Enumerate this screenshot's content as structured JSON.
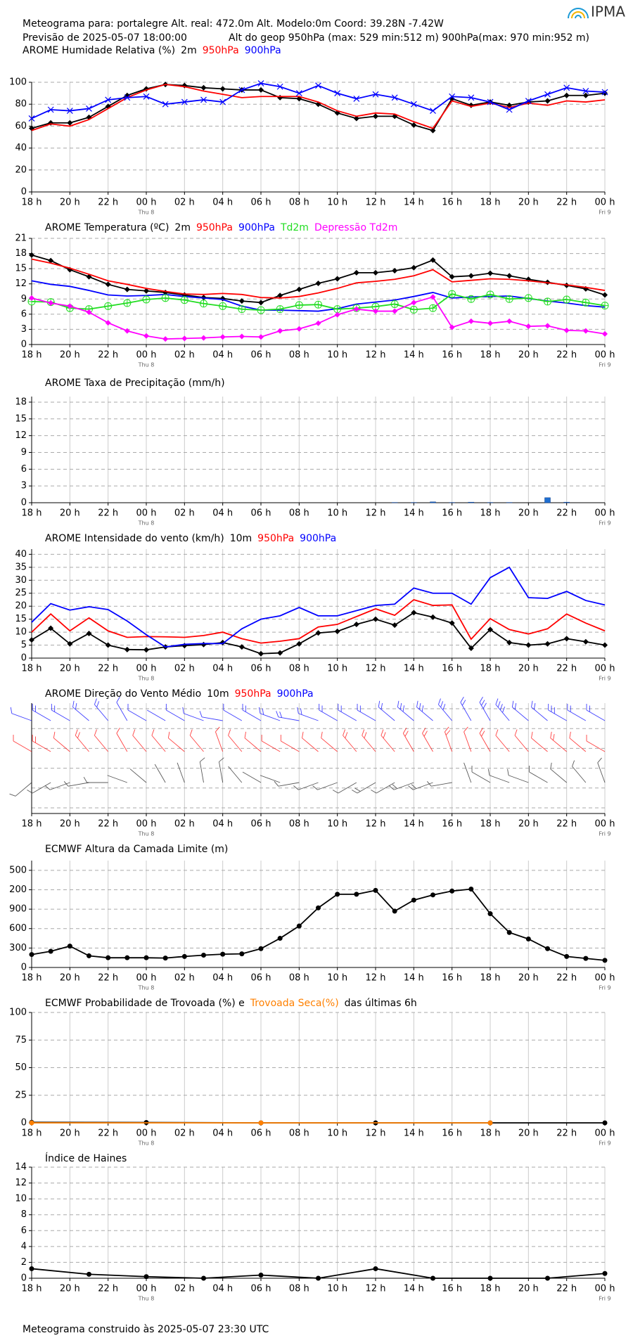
{
  "header": {
    "line1": "Meteograma  para: portalegre    Alt. real: 472.0m    Alt. Modelo:0m   Coord: 39.28N -7.42W",
    "line2a": "Previsão de 2025-05-07 18:00:00",
    "line2b": "Alt do geop 950hPa (max: 529 min:512 m) 900hPa(max: 970 min:952 m)",
    "logo": "IPMA",
    "footer": "Meteograma construido às 2025-05-07 23:30 UTC"
  },
  "x_axis": {
    "xlim": [
      0,
      30
    ],
    "xticks": [
      {
        "value": 0,
        "label": "18 h"
      },
      {
        "value": 2,
        "label": "20 h"
      },
      {
        "value": 4,
        "label": "22 h"
      },
      {
        "value": 6,
        "label": "00 h"
      },
      {
        "value": 8,
        "label": "02 h"
      },
      {
        "value": 10,
        "label": "04 h"
      },
      {
        "value": 12,
        "label": "06 h"
      },
      {
        "value": 14,
        "label": "08 h"
      },
      {
        "value": 16,
        "label": "10 h"
      },
      {
        "value": 18,
        "label": "12 h"
      },
      {
        "value": 20,
        "label": "14 h"
      },
      {
        "value": 22,
        "label": "16 h"
      },
      {
        "value": 24,
        "label": "18 h"
      },
      {
        "value": 26,
        "label": "20 h"
      },
      {
        "value": 28,
        "label": "22 h"
      },
      {
        "value": 30,
        "label": "00 h"
      }
    ],
    "day_labels": [
      {
        "value": 6,
        "label": "Thu 8"
      },
      {
        "value": 30,
        "label": "Fri 9"
      }
    ]
  },
  "chart_data": [
    {
      "type": "line",
      "title": "AROME Humidade Relativa (%)",
      "grid": true,
      "x": [
        0,
        1,
        2,
        3,
        4,
        5,
        6,
        7,
        8,
        9,
        10,
        11,
        12,
        13,
        14,
        15,
        16,
        17,
        18,
        19,
        20,
        21,
        22,
        23,
        24,
        25,
        26,
        27,
        28,
        29,
        30
      ],
      "ylim": [
        0,
        100
      ],
      "yticks": [
        0,
        20,
        40,
        60,
        80,
        100
      ],
      "series": [
        {
          "name": "2m",
          "color": "#000000",
          "marker": "diamond",
          "values": [
            58,
            63,
            63,
            68,
            78,
            88,
            94,
            98,
            97,
            95,
            94,
            93,
            93,
            86,
            85,
            80,
            72,
            67,
            69,
            69,
            61,
            56,
            85,
            79,
            82,
            79,
            82,
            83,
            88,
            88,
            90
          ]
        },
        {
          "name": "950hPa",
          "color": "#ff0000",
          "marker": "none",
          "values": [
            56,
            62,
            60,
            66,
            76,
            86,
            93,
            98,
            96,
            92,
            89,
            86,
            87,
            87,
            87,
            82,
            74,
            69,
            72,
            71,
            64,
            58,
            83,
            78,
            81,
            77,
            81,
            79,
            83,
            82,
            84
          ]
        },
        {
          "name": "900hPa",
          "color": "#0000ff",
          "marker": "x",
          "values": [
            67,
            75,
            74,
            76,
            84,
            86,
            87,
            80,
            82,
            84,
            82,
            93,
            99,
            96,
            90,
            97,
            90,
            85,
            89,
            86,
            80,
            74,
            87,
            86,
            82,
            75,
            83,
            89,
            95,
            92,
            91
          ]
        }
      ]
    },
    {
      "type": "line",
      "title": "AROME Temperatura (ºC)",
      "grid": true,
      "x": [
        0,
        1,
        2,
        3,
        4,
        5,
        6,
        7,
        8,
        9,
        10,
        11,
        12,
        13,
        14,
        15,
        16,
        17,
        18,
        19,
        20,
        21,
        22,
        23,
        24,
        25,
        26,
        27,
        28,
        29,
        30
      ],
      "ylim": [
        0,
        21
      ],
      "yticks": [
        0,
        3,
        6,
        9,
        12,
        15,
        18,
        21
      ],
      "series": [
        {
          "name": "2m",
          "color": "#000000",
          "marker": "diamond",
          "values": [
            17.7,
            16.6,
            14.8,
            13.4,
            11.9,
            10.9,
            10.6,
            10.3,
            9.8,
            9.3,
            9.1,
            8.6,
            8.3,
            9.7,
            10.9,
            12.1,
            13.0,
            14.2,
            14.2,
            14.6,
            15.2,
            16.7,
            13.4,
            13.6,
            14.1,
            13.6,
            12.9,
            12.3,
            11.7,
            11.0,
            9.8
          ]
        },
        {
          "name": "950hPa",
          "color": "#ff0000",
          "marker": "none",
          "values": [
            16.9,
            16.1,
            15.1,
            13.9,
            12.6,
            11.9,
            11.1,
            10.5,
            10.0,
            9.9,
            10.1,
            9.9,
            9.3,
            9.2,
            9.5,
            10.2,
            11.1,
            12.2,
            12.5,
            12.9,
            13.6,
            14.8,
            12.4,
            12.7,
            13.0,
            12.9,
            12.6,
            12.2,
            11.8,
            11.3,
            10.7
          ]
        },
        {
          "name": "900hPa",
          "color": "#0000ff",
          "marker": "none",
          "values": [
            12.6,
            11.9,
            11.5,
            10.7,
            9.8,
            9.6,
            9.7,
            9.9,
            9.5,
            9.2,
            8.9,
            7.6,
            6.8,
            6.8,
            6.7,
            6.6,
            7.1,
            8.0,
            8.4,
            8.8,
            9.5,
            10.3,
            9.2,
            9.4,
            9.5,
            9.6,
            9.1,
            8.6,
            8.2,
            7.7,
            7.4
          ]
        },
        {
          "name": "Td2m",
          "color": "#22dd22",
          "marker": "circle-plus",
          "values": [
            8.5,
            8.4,
            7.2,
            7.0,
            7.6,
            8.2,
            8.9,
            9.2,
            8.8,
            8.1,
            7.6,
            7.0,
            6.8,
            7.0,
            7.8,
            7.9,
            7.0,
            7.2,
            7.5,
            8.0,
            6.9,
            7.2,
            10.0,
            9.0,
            9.9,
            9.0,
            9.2,
            8.5,
            8.9,
            8.3,
            7.7
          ]
        },
        {
          "name": "Depressão Td2m",
          "color": "#ff00ff",
          "marker": "diamond",
          "values": [
            9.2,
            8.2,
            7.6,
            6.4,
            4.3,
            2.7,
            1.7,
            1.1,
            1.2,
            1.3,
            1.5,
            1.6,
            1.5,
            2.7,
            3.1,
            4.2,
            5.9,
            7.0,
            6.6,
            6.6,
            8.3,
            9.4,
            3.4,
            4.6,
            4.2,
            4.6,
            3.6,
            3.7,
            2.8,
            2.7,
            2.1
          ]
        }
      ]
    },
    {
      "type": "bar",
      "title": "AROME Taxa de Precipitação (mm/h)",
      "grid": true,
      "color": "#1f6fd1",
      "x": [
        0,
        1,
        2,
        3,
        4,
        5,
        6,
        7,
        8,
        9,
        10,
        11,
        12,
        13,
        14,
        15,
        16,
        17,
        18,
        19,
        20,
        21,
        22,
        23,
        24,
        25,
        26,
        27,
        28,
        29,
        30
      ],
      "ylim": [
        0,
        19
      ],
      "yticks": [
        0,
        3,
        6,
        9,
        12,
        15,
        18
      ],
      "values": [
        0,
        0,
        0,
        0,
        0,
        0,
        0,
        0,
        0,
        0,
        0,
        0,
        0,
        0,
        0,
        0,
        0,
        0,
        0,
        0.05,
        0.05,
        0.15,
        0.05,
        0.1,
        0.05,
        0.05,
        0,
        0.9,
        0.1,
        0,
        0
      ]
    },
    {
      "type": "line",
      "title": "AROME Intensidade do vento (km/h)",
      "grid": true,
      "x": [
        0,
        1,
        2,
        3,
        4,
        5,
        6,
        7,
        8,
        9,
        10,
        11,
        12,
        13,
        14,
        15,
        16,
        17,
        18,
        19,
        20,
        21,
        22,
        23,
        24,
        25,
        26,
        27,
        28,
        29,
        30
      ],
      "ylim": [
        0,
        42
      ],
      "yticks": [
        0,
        5,
        10,
        15,
        20,
        25,
        30,
        35,
        40
      ],
      "series": [
        {
          "name": "10m",
          "color": "#000000",
          "marker": "diamond",
          "values": [
            7,
            11.5,
            5.5,
            9.5,
            5,
            3.3,
            3.2,
            4.3,
            4.8,
            5.2,
            6,
            4.3,
            1.7,
            2,
            5.5,
            9.7,
            10.3,
            13,
            15,
            12.7,
            17.5,
            15.8,
            13.5,
            3.8,
            11,
            6,
            5,
            5.5,
            7.5,
            6.3,
            5
          ]
        },
        {
          "name": "950hPa",
          "color": "#ff0000",
          "marker": "none",
          "values": [
            10,
            17,
            10.5,
            15.5,
            10.5,
            8,
            8.3,
            8.2,
            8,
            8.7,
            10,
            7.5,
            5.8,
            6.5,
            7.5,
            12,
            13,
            16,
            19,
            16.5,
            22.5,
            20.3,
            20.5,
            7.3,
            15.2,
            11,
            9.3,
            11.3,
            17,
            13.5,
            10.5
          ]
        },
        {
          "name": "900hPa",
          "color": "#0000ff",
          "marker": "none",
          "values": [
            13.8,
            21,
            18.5,
            19.8,
            18.7,
            14.3,
            9,
            4.3,
            5.3,
            5.6,
            5.6,
            11.3,
            15,
            16.3,
            19.5,
            16.3,
            16.3,
            18.3,
            20.3,
            20.8,
            27,
            25,
            25,
            20.8,
            31,
            35,
            23.3,
            23,
            25.7,
            22.2,
            20.5
          ]
        }
      ]
    },
    {
      "type": "barbs",
      "title": "AROME Direção do Vento Médio",
      "x": [
        0,
        1,
        2,
        3,
        4,
        5,
        6,
        7,
        8,
        9,
        10,
        11,
        12,
        13,
        14,
        15,
        16,
        17,
        18,
        19,
        20,
        21,
        22,
        23,
        24,
        25,
        26,
        27,
        28,
        29,
        30
      ],
      "series": [
        {
          "name": "10m",
          "color": "#222222",
          "values": [
            230,
            240,
            250,
            260,
            270,
            290,
            310,
            330,
            340,
            350,
            350,
            320,
            300,
            290,
            260,
            250,
            250,
            240,
            240,
            240,
            250,
            250,
            260,
            340,
            300,
            290,
            290,
            300,
            310,
            320,
            340
          ]
        },
        {
          "name": "950hPa",
          "color": "#ff0000",
          "values": [
            300,
            300,
            310,
            320,
            320,
            330,
            320,
            320,
            310,
            320,
            340,
            320,
            310,
            300,
            300,
            310,
            310,
            320,
            320,
            320,
            330,
            330,
            340,
            340,
            330,
            320,
            320,
            310,
            310,
            310,
            300
          ]
        },
        {
          "name": "900hPa",
          "color": "#0000ff",
          "values": [
            290,
            300,
            300,
            310,
            320,
            330,
            300,
            300,
            300,
            290,
            280,
            300,
            300,
            290,
            280,
            290,
            300,
            300,
            300,
            310,
            310,
            310,
            320,
            330,
            330,
            320,
            310,
            310,
            300,
            300,
            300
          ]
        }
      ]
    },
    {
      "type": "line",
      "title": "ECMWF Altura da Camada Limite (m)",
      "grid": true,
      "x": [
        0,
        1,
        2,
        3,
        4,
        5,
        6,
        7,
        8,
        9,
        10,
        11,
        12,
        13,
        14,
        15,
        16,
        17,
        18,
        19,
        20,
        21,
        22,
        23,
        24,
        25,
        26,
        27,
        28,
        29,
        30
      ],
      "ylim": [
        0,
        1650
      ],
      "yticks": [
        0,
        300,
        600,
        900,
        {
          "value": 1200,
          "label": "200"
        },
        {
          "value": 1500,
          "label": "500"
        }
      ],
      "series": [
        {
          "color": "#000000",
          "marker": "circle",
          "values": [
            200,
            250,
            330,
            180,
            150,
            150,
            150,
            145,
            170,
            190,
            205,
            210,
            290,
            450,
            640,
            920,
            1130,
            1130,
            1190,
            870,
            1040,
            1120,
            1180,
            1210,
            830,
            540,
            440,
            290,
            170,
            140,
            110
          ]
        }
      ]
    },
    {
      "type": "line",
      "title": "ECMWF Probabilidade de Trovoada (%) e",
      "title_suffix": "das últimas 6h",
      "grid": true,
      "ylim": [
        0,
        100
      ],
      "yticks": [
        0,
        25,
        50,
        75,
        100
      ],
      "series": [
        {
          "color": "#000000",
          "marker": "circle",
          "x": [
            0,
            6,
            12,
            18,
            24,
            30
          ],
          "values": [
            0.5,
            0.3,
            0,
            0,
            0,
            0
          ]
        },
        {
          "name": "Trovoada Seca(%)",
          "color": "#ff8000",
          "marker": "circle",
          "x": [
            0,
            12,
            24
          ],
          "values": [
            0,
            0,
            0
          ]
        }
      ]
    },
    {
      "type": "line",
      "title": "Índice de Haines",
      "grid": true,
      "x": [
        0,
        3,
        6,
        9,
        12,
        15,
        18,
        21,
        24,
        27,
        30
      ],
      "ylim": [
        0,
        14
      ],
      "yticks": [
        0,
        2,
        4,
        6,
        8,
        10,
        12,
        14
      ],
      "series": [
        {
          "color": "#000000",
          "marker": "circle",
          "values": [
            1.2,
            0.5,
            0.2,
            0,
            0.4,
            0,
            1.2,
            0,
            0,
            0,
            0.6
          ]
        }
      ]
    }
  ]
}
